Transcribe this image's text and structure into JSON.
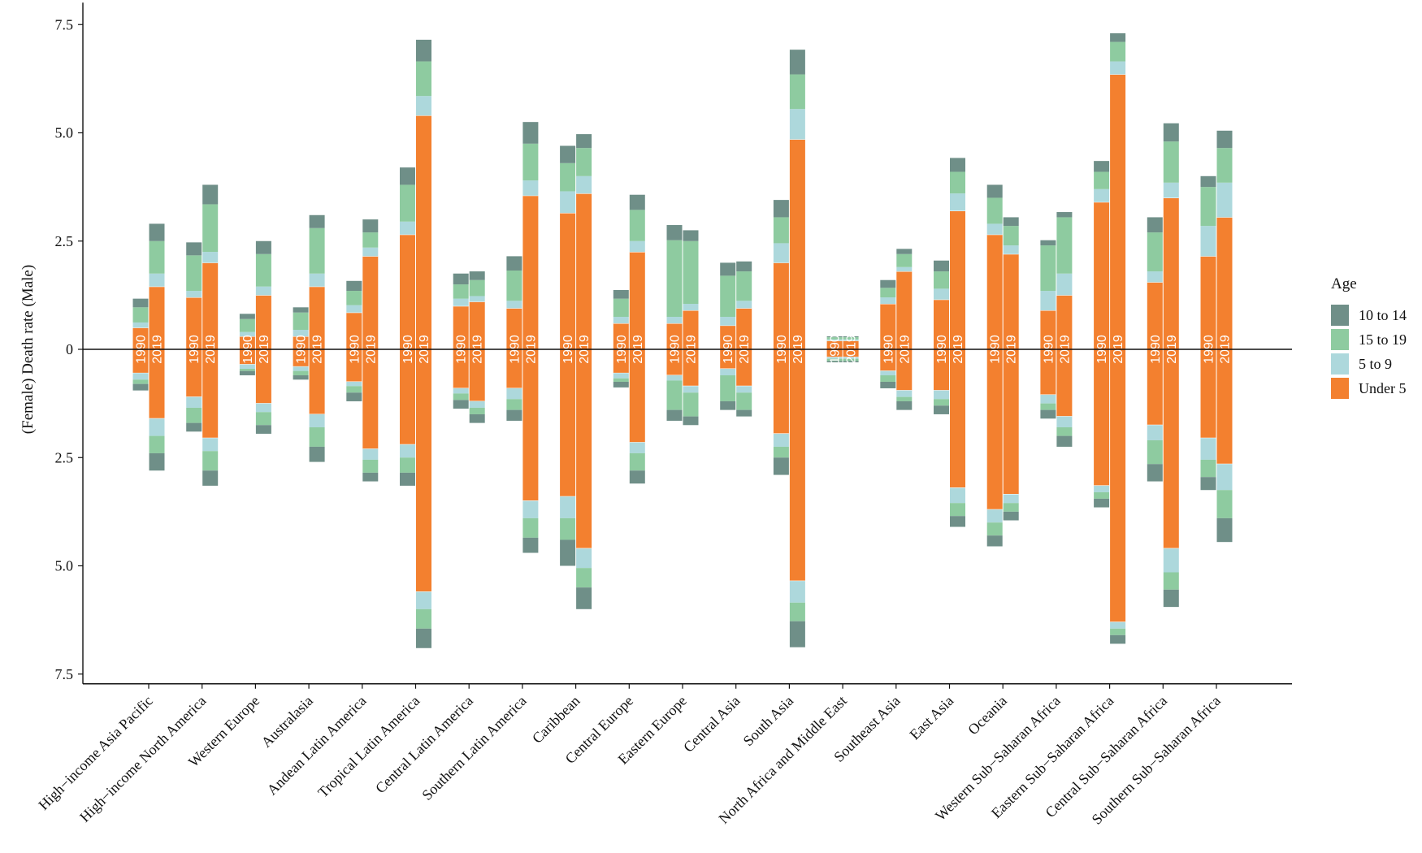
{
  "chart_data": {
    "type": "bar",
    "subtype": "diverging-stacked-bar",
    "ylabel": "(Female) Death rate (Male)",
    "ylim": [
      -7.5,
      7.5
    ],
    "yticks": [
      7.5,
      5.0,
      2.5,
      0,
      -2.5,
      -5.0,
      -7.5
    ],
    "ytick_labels": [
      "7.5",
      "5.0",
      "2.5",
      "0",
      "2.5",
      "5.0",
      "7.5"
    ],
    "legend": {
      "title": "Age",
      "position": "right",
      "items": [
        {
          "name": "10 to 14",
          "color": "#6f8f88"
        },
        {
          "name": "15 to 19",
          "color": "#8ecba0"
        },
        {
          "name": "5 to 9",
          "color": "#add8dc"
        },
        {
          "name": "Under 5",
          "color": "#f3802f"
        }
      ]
    },
    "stack_order": [
      "Under 5",
      "5 to 9",
      "15 to 19",
      "10 to 14"
    ],
    "years": [
      "1990",
      "2019"
    ],
    "categories": [
      {
        "name": "High−income Asia Pacific",
        "bars": [
          {
            "year": "1990",
            "male": [
              0.5,
              0.12,
              0.35,
              0.2
            ],
            "female": [
              0.55,
              0.15,
              0.1,
              0.15
            ]
          },
          {
            "year": "2019",
            "male": [
              1.45,
              0.3,
              0.75,
              0.4
            ],
            "female": [
              1.6,
              0.4,
              0.4,
              0.4
            ]
          }
        ]
      },
      {
        "name": "High−income North America",
        "bars": [
          {
            "year": "1990",
            "male": [
              1.2,
              0.15,
              0.82,
              0.3
            ],
            "female": [
              1.1,
              0.25,
              0.35,
              0.2
            ]
          },
          {
            "year": "2019",
            "male": [
              2.0,
              0.25,
              1.1,
              0.45
            ],
            "female": [
              2.05,
              0.3,
              0.45,
              0.35
            ]
          }
        ]
      },
      {
        "name": "Western Europe",
        "bars": [
          {
            "year": "1990",
            "male": [
              0.3,
              0.1,
              0.3,
              0.12
            ],
            "female": [
              0.35,
              0.1,
              0.05,
              0.1
            ]
          },
          {
            "year": "2019",
            "male": [
              1.25,
              0.2,
              0.75,
              0.3
            ],
            "female": [
              1.25,
              0.2,
              0.3,
              0.2
            ]
          }
        ]
      },
      {
        "name": "Australasia",
        "bars": [
          {
            "year": "1990",
            "male": [
              0.3,
              0.15,
              0.4,
              0.12
            ],
            "female": [
              0.4,
              0.1,
              0.1,
              0.1
            ]
          },
          {
            "year": "2019",
            "male": [
              1.45,
              0.3,
              1.05,
              0.3
            ],
            "female": [
              1.5,
              0.3,
              0.45,
              0.35
            ]
          }
        ]
      },
      {
        "name": "Andean Latin America",
        "bars": [
          {
            "year": "1990",
            "male": [
              0.85,
              0.17,
              0.33,
              0.23
            ],
            "female": [
              0.75,
              0.1,
              0.15,
              0.2
            ]
          },
          {
            "year": "2019",
            "male": [
              2.15,
              0.2,
              0.35,
              0.3
            ],
            "female": [
              2.3,
              0.25,
              0.3,
              0.2
            ]
          }
        ]
      },
      {
        "name": "Tropical Latin America",
        "bars": [
          {
            "year": "1990",
            "male": [
              2.65,
              0.3,
              0.85,
              0.4
            ],
            "female": [
              2.2,
              0.3,
              0.35,
              0.3
            ]
          },
          {
            "year": "2019",
            "male": [
              5.4,
              0.45,
              0.8,
              0.5
            ],
            "female": [
              5.6,
              0.4,
              0.45,
              0.45
            ]
          }
        ]
      },
      {
        "name": "Central Latin America",
        "bars": [
          {
            "year": "1990",
            "male": [
              1.0,
              0.17,
              0.33,
              0.25
            ],
            "female": [
              0.9,
              0.12,
              0.15,
              0.2
            ]
          },
          {
            "year": "2019",
            "male": [
              1.1,
              0.13,
              0.37,
              0.2
            ],
            "female": [
              1.2,
              0.15,
              0.15,
              0.2
            ]
          }
        ]
      },
      {
        "name": "Southern Latin America",
        "bars": [
          {
            "year": "1990",
            "male": [
              0.95,
              0.17,
              0.7,
              0.33
            ],
            "female": [
              0.9,
              0.25,
              0.25,
              0.25
            ]
          },
          {
            "year": "2019",
            "male": [
              3.55,
              0.35,
              0.85,
              0.5
            ],
            "female": [
              3.5,
              0.4,
              0.45,
              0.35
            ]
          }
        ]
      },
      {
        "name": "Caribbean",
        "bars": [
          {
            "year": "1990",
            "male": [
              3.15,
              0.5,
              0.65,
              0.4
            ],
            "female": [
              3.4,
              0.5,
              0.5,
              0.6
            ]
          },
          {
            "year": "2019",
            "male": [
              3.6,
              0.4,
              0.65,
              0.32
            ],
            "female": [
              4.6,
              0.45,
              0.45,
              0.5
            ]
          }
        ]
      },
      {
        "name": "Central Europe",
        "bars": [
          {
            "year": "1990",
            "male": [
              0.6,
              0.15,
              0.42,
              0.2
            ],
            "female": [
              0.55,
              0.12,
              0.08,
              0.13
            ]
          },
          {
            "year": "2019",
            "male": [
              2.25,
              0.25,
              0.72,
              0.35
            ],
            "female": [
              2.15,
              0.25,
              0.4,
              0.3
            ]
          }
        ]
      },
      {
        "name": "Eastern Europe",
        "bars": [
          {
            "year": "1990",
            "male": [
              0.6,
              0.15,
              1.77,
              0.35
            ],
            "female": [
              0.6,
              0.12,
              0.68,
              0.25
            ]
          },
          {
            "year": "2019",
            "male": [
              0.9,
              0.15,
              1.45,
              0.25
            ],
            "female": [
              0.85,
              0.15,
              0.55,
              0.2
            ]
          }
        ]
      },
      {
        "name": "Central Asia",
        "bars": [
          {
            "year": "1990",
            "male": [
              0.55,
              0.2,
              0.95,
              0.3
            ],
            "female": [
              0.45,
              0.15,
              0.6,
              0.2
            ]
          },
          {
            "year": "2019",
            "male": [
              0.95,
              0.17,
              0.68,
              0.23
            ],
            "female": [
              0.85,
              0.15,
              0.4,
              0.15
            ]
          }
        ]
      },
      {
        "name": "South Asia",
        "bars": [
          {
            "year": "1990",
            "male": [
              2.0,
              0.45,
              0.6,
              0.4
            ],
            "female": [
              1.95,
              0.3,
              0.25,
              0.4
            ]
          },
          {
            "year": "2019",
            "male": [
              4.85,
              0.7,
              0.8,
              0.57
            ],
            "female": [
              5.35,
              0.5,
              0.43,
              0.6
            ]
          }
        ]
      },
      {
        "name": "North Africa and Middle East",
        "bars": [
          {
            "year": "1990",
            "male": [
              0.2,
              0.03,
              0.05,
              0.02
            ],
            "female": [
              0.18,
              0.04,
              0.05,
              0.03
            ]
          },
          {
            "year": "2019",
            "male": [
              0.2,
              0.03,
              0.05,
              0.02
            ],
            "female": [
              0.18,
              0.04,
              0.05,
              0.03
            ]
          }
        ]
      },
      {
        "name": "Southeast Asia",
        "bars": [
          {
            "year": "1990",
            "male": [
              1.05,
              0.15,
              0.22,
              0.18
            ],
            "female": [
              0.5,
              0.1,
              0.15,
              0.15
            ]
          },
          {
            "year": "2019",
            "male": [
              1.8,
              0.1,
              0.3,
              0.12
            ],
            "female": [
              0.95,
              0.15,
              0.1,
              0.2
            ]
          }
        ]
      },
      {
        "name": "East Asia",
        "bars": [
          {
            "year": "1990",
            "male": [
              1.15,
              0.25,
              0.4,
              0.25
            ],
            "female": [
              0.95,
              0.2,
              0.15,
              0.2
            ]
          },
          {
            "year": "2019",
            "male": [
              3.2,
              0.4,
              0.5,
              0.32
            ],
            "female": [
              3.2,
              0.35,
              0.3,
              0.25
            ]
          }
        ]
      },
      {
        "name": "Oceania",
        "bars": [
          {
            "year": "1990",
            "male": [
              2.65,
              0.25,
              0.6,
              0.3
            ],
            "female": [
              3.7,
              0.3,
              0.3,
              0.25
            ]
          },
          {
            "year": "2019",
            "male": [
              2.2,
              0.2,
              0.45,
              0.2
            ],
            "female": [
              3.35,
              0.2,
              0.2,
              0.2
            ]
          }
        ]
      },
      {
        "name": "Western Sub−Saharan Africa",
        "bars": [
          {
            "year": "1990",
            "male": [
              0.9,
              0.45,
              1.05,
              0.12
            ],
            "female": [
              1.05,
              0.2,
              0.15,
              0.2
            ]
          },
          {
            "year": "2019",
            "male": [
              1.25,
              0.5,
              1.3,
              0.12
            ],
            "female": [
              1.55,
              0.25,
              0.2,
              0.25
            ]
          }
        ]
      },
      {
        "name": "Eastern Sub−Saharan Africa",
        "bars": [
          {
            "year": "1990",
            "male": [
              3.4,
              0.3,
              0.4,
              0.25
            ],
            "female": [
              3.15,
              0.15,
              0.15,
              0.2
            ]
          },
          {
            "year": "2019",
            "male": [
              6.35,
              0.3,
              0.45,
              0.2
            ],
            "female": [
              6.3,
              0.15,
              0.15,
              0.2
            ]
          }
        ]
      },
      {
        "name": "Central Sub−Saharan Africa",
        "bars": [
          {
            "year": "1990",
            "male": [
              1.55,
              0.25,
              0.9,
              0.35
            ],
            "female": [
              1.75,
              0.35,
              0.55,
              0.4
            ]
          },
          {
            "year": "2019",
            "male": [
              3.5,
              0.35,
              0.95,
              0.42
            ],
            "female": [
              4.6,
              0.55,
              0.4,
              0.4
            ]
          }
        ]
      },
      {
        "name": "Southern Sub−Saharan Africa",
        "bars": [
          {
            "year": "1990",
            "male": [
              2.15,
              0.7,
              0.9,
              0.25
            ],
            "female": [
              2.05,
              0.5,
              0.4,
              0.3
            ]
          },
          {
            "year": "2019",
            "male": [
              3.05,
              0.8,
              0.8,
              0.4
            ],
            "female": [
              2.65,
              0.6,
              0.65,
              0.55
            ]
          }
        ]
      }
    ]
  }
}
